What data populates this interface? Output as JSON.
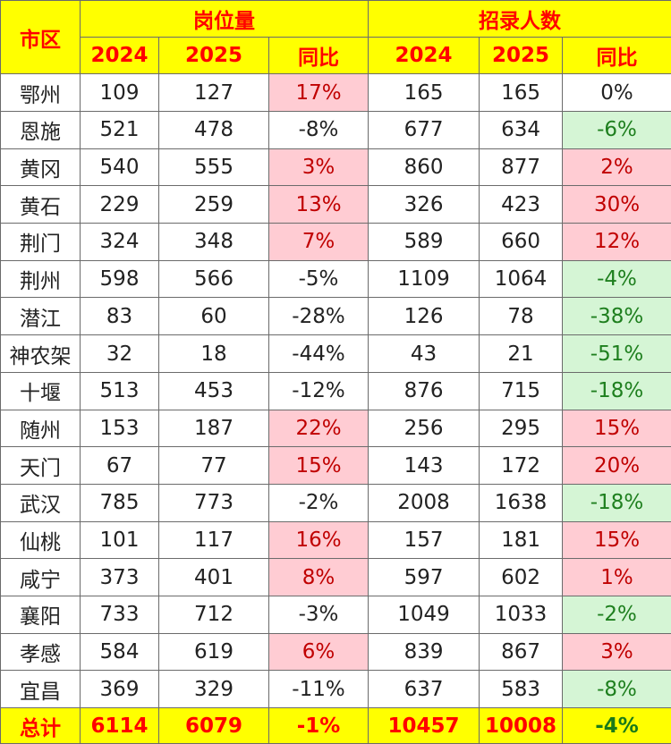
{
  "header": {
    "region": "市区",
    "group_positions": "岗位量",
    "group_recruits": "招录人数",
    "year_a": "2024",
    "year_b": "2025",
    "yoy": "同比"
  },
  "colors": {
    "header_bg": "#ffff00",
    "header_text": "#ff0000",
    "increase_bg": "#ffccd3",
    "increase_text": "#c00000",
    "decrease_bg": "#d5f5d5",
    "decrease_text": "#1e7f1e"
  },
  "rows": [
    {
      "city": "鄂州",
      "pos_2024": "109",
      "pos_2025": "127",
      "pos_yoy": "17%",
      "pos_trend": "up",
      "rec_2024": "165",
      "rec_2025": "165",
      "rec_yoy": "0%",
      "rec_trend": "flat"
    },
    {
      "city": "恩施",
      "pos_2024": "521",
      "pos_2025": "478",
      "pos_yoy": "-8%",
      "pos_trend": "plain",
      "rec_2024": "677",
      "rec_2025": "634",
      "rec_yoy": "-6%",
      "rec_trend": "down"
    },
    {
      "city": "黄冈",
      "pos_2024": "540",
      "pos_2025": "555",
      "pos_yoy": "3%",
      "pos_trend": "up",
      "rec_2024": "860",
      "rec_2025": "877",
      "rec_yoy": "2%",
      "rec_trend": "up"
    },
    {
      "city": "黄石",
      "pos_2024": "229",
      "pos_2025": "259",
      "pos_yoy": "13%",
      "pos_trend": "up",
      "rec_2024": "326",
      "rec_2025": "423",
      "rec_yoy": "30%",
      "rec_trend": "up"
    },
    {
      "city": "荆门",
      "pos_2024": "324",
      "pos_2025": "348",
      "pos_yoy": "7%",
      "pos_trend": "up",
      "rec_2024": "589",
      "rec_2025": "660",
      "rec_yoy": "12%",
      "rec_trend": "up"
    },
    {
      "city": "荆州",
      "pos_2024": "598",
      "pos_2025": "566",
      "pos_yoy": "-5%",
      "pos_trend": "plain",
      "rec_2024": "1109",
      "rec_2025": "1064",
      "rec_yoy": "-4%",
      "rec_trend": "down"
    },
    {
      "city": "潜江",
      "pos_2024": "83",
      "pos_2025": "60",
      "pos_yoy": "-28%",
      "pos_trend": "plain",
      "rec_2024": "126",
      "rec_2025": "78",
      "rec_yoy": "-38%",
      "rec_trend": "down"
    },
    {
      "city": "神农架",
      "pos_2024": "32",
      "pos_2025": "18",
      "pos_yoy": "-44%",
      "pos_trend": "plain",
      "rec_2024": "43",
      "rec_2025": "21",
      "rec_yoy": "-51%",
      "rec_trend": "down"
    },
    {
      "city": "十堰",
      "pos_2024": "513",
      "pos_2025": "453",
      "pos_yoy": "-12%",
      "pos_trend": "plain",
      "rec_2024": "876",
      "rec_2025": "715",
      "rec_yoy": "-18%",
      "rec_trend": "down"
    },
    {
      "city": "随州",
      "pos_2024": "153",
      "pos_2025": "187",
      "pos_yoy": "22%",
      "pos_trend": "up",
      "rec_2024": "256",
      "rec_2025": "295",
      "rec_yoy": "15%",
      "rec_trend": "up"
    },
    {
      "city": "天门",
      "pos_2024": "67",
      "pos_2025": "77",
      "pos_yoy": "15%",
      "pos_trend": "up",
      "rec_2024": "143",
      "rec_2025": "172",
      "rec_yoy": "20%",
      "rec_trend": "up"
    },
    {
      "city": "武汉",
      "pos_2024": "785",
      "pos_2025": "773",
      "pos_yoy": "-2%",
      "pos_trend": "plain",
      "rec_2024": "2008",
      "rec_2025": "1638",
      "rec_yoy": "-18%",
      "rec_trend": "down"
    },
    {
      "city": "仙桃",
      "pos_2024": "101",
      "pos_2025": "117",
      "pos_yoy": "16%",
      "pos_trend": "up",
      "rec_2024": "157",
      "rec_2025": "181",
      "rec_yoy": "15%",
      "rec_trend": "up"
    },
    {
      "city": "咸宁",
      "pos_2024": "373",
      "pos_2025": "401",
      "pos_yoy": "8%",
      "pos_trend": "up",
      "rec_2024": "597",
      "rec_2025": "602",
      "rec_yoy": "1%",
      "rec_trend": "up"
    },
    {
      "city": "襄阳",
      "pos_2024": "733",
      "pos_2025": "712",
      "pos_yoy": "-3%",
      "pos_trend": "plain",
      "rec_2024": "1049",
      "rec_2025": "1033",
      "rec_yoy": "-2%",
      "rec_trend": "down"
    },
    {
      "city": "孝感",
      "pos_2024": "584",
      "pos_2025": "619",
      "pos_yoy": "6%",
      "pos_trend": "up",
      "rec_2024": "839",
      "rec_2025": "867",
      "rec_yoy": "3%",
      "rec_trend": "up"
    },
    {
      "city": "宜昌",
      "pos_2024": "369",
      "pos_2025": "329",
      "pos_yoy": "-11%",
      "pos_trend": "plain",
      "rec_2024": "637",
      "rec_2025": "583",
      "rec_yoy": "-8%",
      "rec_trend": "down"
    }
  ],
  "total": {
    "label": "总计",
    "pos_2024": "6114",
    "pos_2025": "6079",
    "pos_yoy": "-1%",
    "rec_2024": "10457",
    "rec_2025": "10008",
    "rec_yoy": "-4%"
  }
}
